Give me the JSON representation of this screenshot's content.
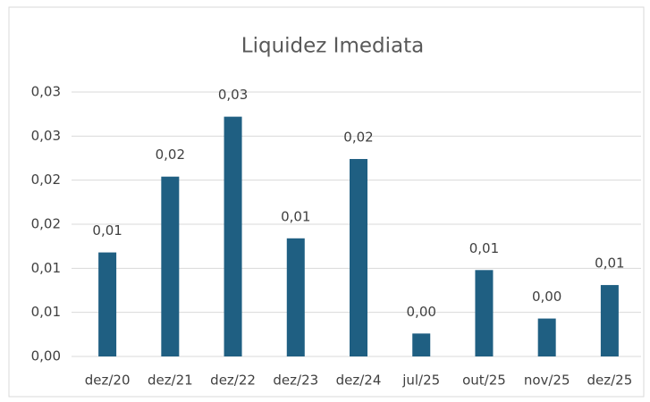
{
  "chart_data": {
    "type": "bar",
    "title": "Liquidez Imediata",
    "categories": [
      "dez/20",
      "dez/21",
      "dez/22",
      "dez/23",
      "dez/24",
      "jul/25",
      "out/25",
      "nov/25",
      "dez/25"
    ],
    "values": [
      0.0118,
      0.0204,
      0.0272,
      0.0134,
      0.0224,
      0.0026,
      0.0098,
      0.0043,
      0.0081
    ],
    "value_labels": [
      "0,01",
      "0,02",
      "0,03",
      "0,01",
      "0,02",
      "0,00",
      "0,01",
      "0,00",
      "0,01"
    ],
    "color": "#1f5f82",
    "ylim": [
      0,
      0.03
    ],
    "yticks": [
      {
        "value": 0,
        "label": "0,00"
      },
      {
        "value": 0.005,
        "label": "0,01"
      },
      {
        "value": 0.01,
        "label": "0,01"
      },
      {
        "value": 0.015,
        "label": "0,02"
      },
      {
        "value": 0.02,
        "label": "0,02"
      },
      {
        "value": 0.025,
        "label": "0,03"
      },
      {
        "value": 0.03,
        "label": "0,03"
      }
    ],
    "grid": true
  }
}
